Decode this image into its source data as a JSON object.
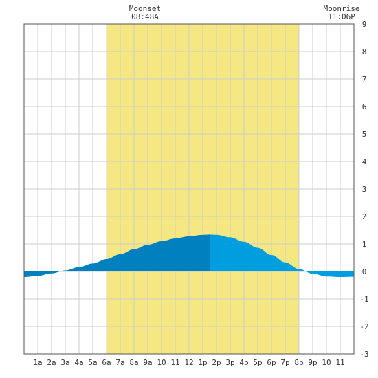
{
  "chart_data": {
    "type": "area",
    "title": "",
    "xlabel": "",
    "ylabel": "",
    "x_tick_labels": [
      "1a",
      "2a",
      "3a",
      "4a",
      "5a",
      "6a",
      "7a",
      "8a",
      "9a",
      "10",
      "11",
      "12",
      "1p",
      "2p",
      "3p",
      "4p",
      "5p",
      "6p",
      "7p",
      "8p",
      "9p",
      "10",
      "11"
    ],
    "xlim": [
      0,
      24
    ],
    "ylim": [
      -3,
      9
    ],
    "y_ticks": [
      -3,
      -2,
      -1,
      0,
      1,
      2,
      3,
      4,
      5,
      6,
      7,
      8,
      9
    ],
    "y_tick_labels": [
      "-3",
      "-2",
      "-1",
      "0",
      "1",
      "2",
      "3",
      "4",
      "5",
      "6",
      "7",
      "8",
      "9"
    ],
    "grid": true,
    "daylight_hours": [
      6,
      20
    ],
    "annotations": [
      {
        "label": "Moonset",
        "time": "08:48A",
        "hour": 8.8
      },
      {
        "label": "Moonrise",
        "time": "11:06P",
        "hour": 23.1
      }
    ],
    "series": [
      {
        "x": [
          0,
          1,
          2,
          3,
          4,
          5,
          6,
          7,
          8,
          9,
          10,
          11,
          12,
          13,
          13.5,
          14,
          15,
          16,
          17,
          18,
          19,
          20,
          21,
          22,
          23,
          24
        ],
        "values": [
          -0.2,
          -0.16,
          -0.07,
          0.04,
          0.16,
          0.29,
          0.45,
          0.63,
          0.81,
          0.97,
          1.1,
          1.2,
          1.28,
          1.33,
          1.34,
          1.33,
          1.24,
          1.08,
          0.86,
          0.6,
          0.33,
          0.09,
          -0.08,
          -0.18,
          -0.2,
          -0.19
        ]
      }
    ],
    "high_tide_hour": 13.5,
    "colors": {
      "daylight": "#f5e882",
      "tide_before_high": "#0080be",
      "tide_after_high": "#009ede",
      "grid": "#cccccc",
      "border": "#555555",
      "text": "#333333"
    }
  }
}
